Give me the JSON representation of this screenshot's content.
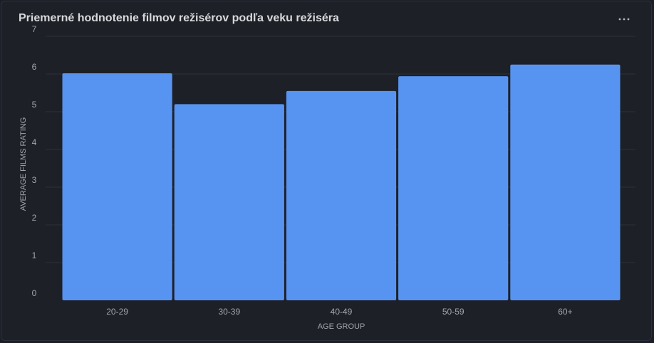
{
  "panel": {
    "title": "Priemerné hodnotenie filmov režisérov podľa veku režiséra",
    "menu_icon": "more-horizontal-icon"
  },
  "colors": {
    "bar": "#5794f2",
    "grid": "#2c2f37",
    "text": "#a3a6ad"
  },
  "chart_data": {
    "type": "bar",
    "categories": [
      "20-29",
      "30-39",
      "40-49",
      "50-59",
      "60+"
    ],
    "values": [
      6.02,
      5.2,
      5.55,
      5.94,
      6.25
    ],
    "xlabel": "AGE GROUP",
    "ylabel": "AVERAGE FILMS RATING",
    "ylim": [
      0,
      7
    ],
    "yticks": [
      0,
      1,
      2,
      3,
      4,
      5,
      6,
      7
    ],
    "grid": true,
    "legend": false
  }
}
